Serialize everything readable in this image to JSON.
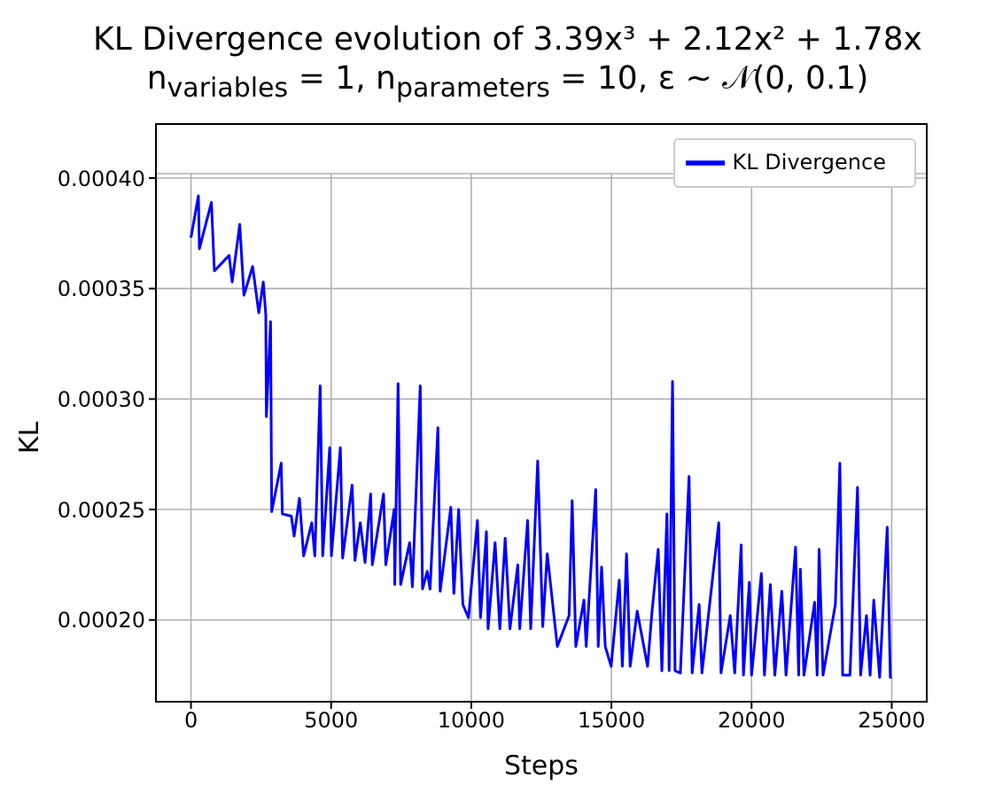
{
  "chart_data": {
    "type": "line",
    "title": "KL Divergence evolution of 3.39x³ + 2.12x² + 1.78x",
    "subtitle": "n$_{variables}$ = 1, n$_{parameters}$ = 10, ε ∼ 𝒩(0, 0.1)",
    "xlabel": "Steps",
    "ylabel": "KL",
    "x": [
      0,
      265,
      300,
      730,
      835,
      1360,
      1470,
      1740,
      1890,
      2200,
      2420,
      2580,
      2670,
      2690,
      2840,
      2880,
      3220,
      3260,
      3580,
      3680,
      3870,
      4020,
      4310,
      4420,
      4610,
      4700,
      4950,
      5010,
      5330,
      5410,
      5750,
      5850,
      6040,
      6210,
      6410,
      6470,
      6870,
      6950,
      7250,
      7270,
      7390,
      7480,
      7800,
      7900,
      8180,
      8260,
      8430,
      8530,
      8810,
      8890,
      9270,
      9380,
      9550,
      9700,
      9900,
      10220,
      10330,
      10540,
      10600,
      10850,
      11020,
      11210,
      11380,
      11660,
      11730,
      12010,
      12120,
      12370,
      12550,
      12710,
      13070,
      13490,
      13600,
      13730,
      14020,
      14100,
      14440,
      14530,
      14650,
      14780,
      14990,
      15280,
      15390,
      15540,
      15670,
      15920,
      16290,
      16450,
      16670,
      16800,
      16980,
      17060,
      17180,
      17270,
      17460,
      17770,
      17880,
      18130,
      18230,
      18830,
      18910,
      19240,
      19400,
      19630,
      19710,
      19920,
      20000,
      20350,
      20460,
      20670,
      20830,
      21080,
      21230,
      21570,
      21680,
      21740,
      21870,
      22250,
      22340,
      22410,
      22550,
      22990,
      23150,
      23250,
      23510,
      23780,
      23890,
      24100,
      24230,
      24360,
      24570,
      24840,
      24950,
      25000
    ],
    "series": [
      {
        "name": "KL Divergence",
        "color": "#0000ff",
        "values": [
          0.000373,
          0.000392,
          0.000368,
          0.000389,
          0.000358,
          0.000365,
          0.000353,
          0.000379,
          0.000347,
          0.00036,
          0.000339,
          0.000353,
          0.000338,
          0.000292,
          0.000335,
          0.000249,
          0.000271,
          0.000248,
          0.000247,
          0.000238,
          0.000255,
          0.000229,
          0.000244,
          0.000229,
          0.000306,
          0.000229,
          0.000278,
          0.000229,
          0.000278,
          0.000228,
          0.000261,
          0.000227,
          0.000244,
          0.000226,
          0.000257,
          0.000225,
          0.000257,
          0.000225,
          0.00025,
          0.000216,
          0.000307,
          0.000216,
          0.000235,
          0.000215,
          0.000306,
          0.000214,
          0.000222,
          0.000214,
          0.000287,
          0.000213,
          0.000251,
          0.000212,
          0.00025,
          0.000207,
          0.000201,
          0.000245,
          0.000201,
          0.00024,
          0.000196,
          0.000235,
          0.000196,
          0.000237,
          0.000196,
          0.000225,
          0.000196,
          0.000245,
          0.000196,
          0.000272,
          0.000197,
          0.00023,
          0.000188,
          0.000202,
          0.000254,
          0.000188,
          0.000209,
          0.000188,
          0.000259,
          0.000188,
          0.000224,
          0.000188,
          0.000179,
          0.000218,
          0.000179,
          0.00023,
          0.000179,
          0.000204,
          0.000179,
          0.000204,
          0.000232,
          0.000177,
          0.000248,
          0.000177,
          0.000308,
          0.000177,
          0.000176,
          0.000265,
          0.000176,
          0.000207,
          0.000176,
          0.000244,
          0.000176,
          0.000202,
          0.000176,
          0.000234,
          0.000175,
          0.000217,
          0.000175,
          0.000221,
          0.000175,
          0.000216,
          0.000175,
          0.000213,
          0.000175,
          0.000233,
          0.000175,
          0.000223,
          0.000175,
          0.000208,
          0.000175,
          0.000232,
          0.000175,
          0.000207,
          0.000271,
          0.000175,
          0.000175,
          0.00026,
          0.000175,
          0.000202,
          0.000175,
          0.000209,
          0.000174,
          0.000242,
          0.000174,
          0.000174
        ]
      }
    ],
    "xlim": [
      -1250,
      26250
    ],
    "xticks": [
      0,
      5000,
      10000,
      15000,
      20000,
      25000
    ],
    "ylim": [
      0.000163,
      0.000402
    ],
    "yticks": [
      {
        "value": 0.0002,
        "label": "0.00020"
      },
      {
        "value": 0.00025,
        "label": "0.00025"
      },
      {
        "value": 0.0003,
        "label": "0.00030"
      },
      {
        "value": 0.00035,
        "label": "0.00035"
      },
      {
        "value": 0.0004,
        "label": "0.00040"
      }
    ],
    "grid": true,
    "legend": "top right",
    "marker": "none",
    "line_style": "solid"
  }
}
